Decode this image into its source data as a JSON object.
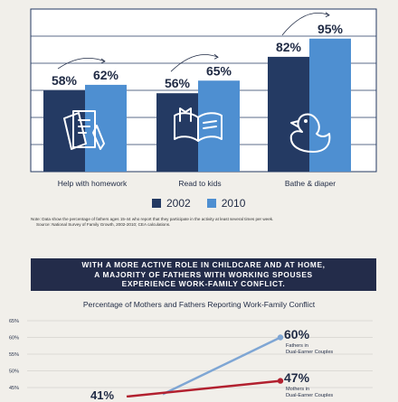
{
  "chart_data": [
    {
      "type": "bar",
      "categories": [
        "Help with homework",
        "Read to kids",
        "Bathe & diaper"
      ],
      "series": [
        {
          "name": "2002",
          "values": [
            58,
            56,
            82
          ],
          "color": "#243a63"
        },
        {
          "name": "2010",
          "values": [
            62,
            65,
            95
          ],
          "color": "#4e8fd1"
        }
      ],
      "value_labels": [
        "58%",
        "62%",
        "56%",
        "65%",
        "82%",
        "95%"
      ],
      "icons": [
        "homework-icon",
        "book-icon",
        "rubber-duck-icon"
      ],
      "ylim": [
        0,
        100
      ],
      "grid": true
    },
    {
      "type": "line",
      "title": "Percentage of Mothers and Fathers Reporting Work-Family Conflict",
      "y_ticks": [
        "65%",
        "60%",
        "55%",
        "50%",
        "45%"
      ],
      "series": [
        {
          "name": "Fathers in Dual-Earner Couples",
          "end_value": 60,
          "end_label": "60%",
          "color": "#7fa6d4"
        },
        {
          "name": "Mothers in Dual-Earner Couples",
          "end_value": 47,
          "end_label": "47%",
          "color": "#b2202f"
        }
      ],
      "start_label": "41%"
    }
  ],
  "legend": {
    "y2002": "2002",
    "y2010": "2010"
  },
  "note": {
    "line1": "Note: Data show the percentage of fathers ages 15-44 who report that they participate in the activity at least several times per week.",
    "line2": "Source: National Survey of Family Growth, 2002-2010; CEA calculations."
  },
  "banner": {
    "line1": "WITH A MORE ACTIVE ROLE IN CHILDCARE AND AT HOME,",
    "line2": "A MAJORITY OF FATHERS WITH WORKING SPOUSES",
    "line3": "EXPERIENCE WORK-FAMILY CONFLICT."
  },
  "fathers_label": {
    "line1": "Fathers in",
    "line2": "Dual-Earner Couples"
  },
  "mothers_label": {
    "line1": "Mothers in",
    "line2": "Dual-Earner Couples"
  }
}
